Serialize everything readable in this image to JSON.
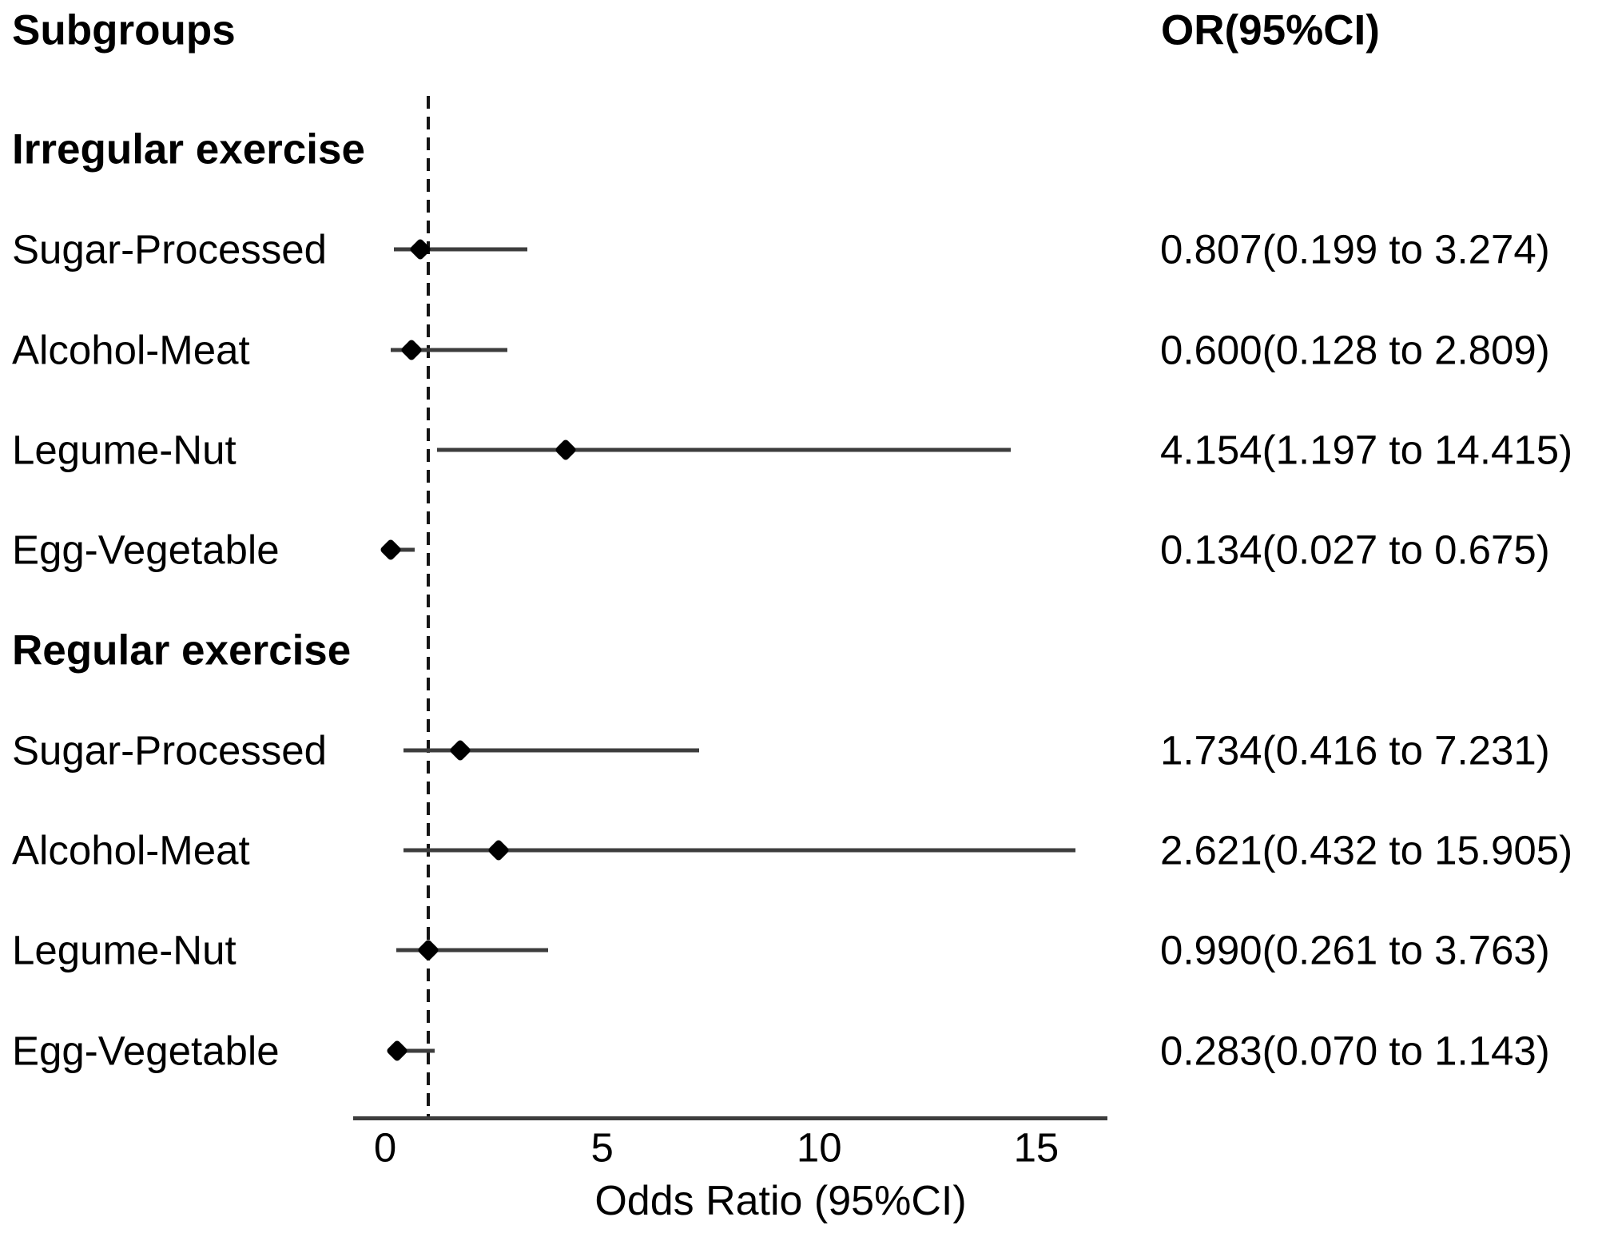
{
  "columns": {
    "subgroups_header": "Subgroups",
    "or_header": "OR(95%CI)"
  },
  "axis": {
    "label": "Odds Ratio (95%CI)",
    "ticks": [
      0,
      5,
      10,
      15
    ],
    "range_min": -0.74,
    "range_max": 16.6,
    "reference_value": 1
  },
  "colors": {
    "background": "#ffffff",
    "text": "#000000",
    "ci_line": "#3d3d3d",
    "marker": "#000000",
    "axis_line": "#3d3d3d",
    "reference_line": "#141414"
  },
  "chart_data": {
    "type": "forest",
    "xlabel": "Odds Ratio (95%CI)",
    "x_ticks": [
      0,
      5,
      10,
      15
    ],
    "x_range": [
      -0.74,
      16.6
    ],
    "reference_line": 1,
    "groups": [
      {
        "name": "Irregular exercise",
        "rows": [
          {
            "label": "Sugar-Processed",
            "or": 0.807,
            "ci_low": 0.199,
            "ci_high": 3.274,
            "or_ci_text": "0.807(0.199 to 3.274)"
          },
          {
            "label": "Alcohol-Meat",
            "or": 0.6,
            "ci_low": 0.128,
            "ci_high": 2.809,
            "or_ci_text": "0.600(0.128 to 2.809)"
          },
          {
            "label": "Legume-Nut",
            "or": 4.154,
            "ci_low": 1.197,
            "ci_high": 14.415,
            "or_ci_text": "4.154(1.197 to 14.415)"
          },
          {
            "label": "Egg-Vegetable",
            "or": 0.134,
            "ci_low": 0.027,
            "ci_high": 0.675,
            "or_ci_text": "0.134(0.027 to 0.675)"
          }
        ]
      },
      {
        "name": "Regular exercise",
        "rows": [
          {
            "label": "Sugar-Processed",
            "or": 1.734,
            "ci_low": 0.416,
            "ci_high": 7.231,
            "or_ci_text": "1.734(0.416 to 7.231)"
          },
          {
            "label": "Alcohol-Meat",
            "or": 2.621,
            "ci_low": 0.432,
            "ci_high": 15.905,
            "or_ci_text": "2.621(0.432 to 15.905)"
          },
          {
            "label": "Legume-Nut",
            "or": 0.99,
            "ci_low": 0.261,
            "ci_high": 3.763,
            "or_ci_text": "0.990(0.261 to 3.763)"
          },
          {
            "label": "Egg-Vegetable",
            "or": 0.283,
            "ci_low": 0.07,
            "ci_high": 1.143,
            "or_ci_text": "0.283(0.070 to 1.143)"
          }
        ]
      }
    ]
  }
}
